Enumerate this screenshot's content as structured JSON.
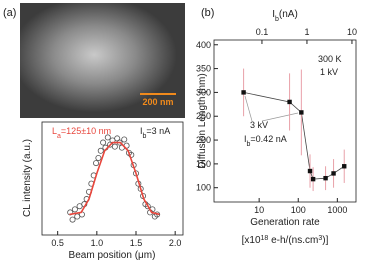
{
  "panel_labels": [
    "(a)",
    "(b)"
  ],
  "scale_bar": "200 nm",
  "chart_data": [
    {
      "type": "scatter",
      "xlabel": "Beam position (μm)",
      "ylabel": "CL intensity (a.u.)",
      "xlim": [
        0.3,
        2.1
      ],
      "ylim": [
        0,
        1.1
      ],
      "xticks": [
        0.5,
        {
          "value": 1,
          "label": "1.0"
        },
        1.5,
        {
          "value": 2,
          "label": "2.0"
        }
      ],
      "annotations": [
        [
          "L",
          "a",
          "=125±10 nm"
        ],
        [
          "I",
          "b",
          "=3 nA"
        ]
      ],
      "series": [
        {
          "marker": "circle",
          "color": "#555555",
          "x": [
            0.66,
            0.69,
            0.72,
            0.75,
            0.78,
            0.81,
            0.84,
            0.87,
            0.9,
            0.93,
            0.96,
            0.99,
            1.02,
            1.05,
            1.08,
            1.11,
            1.14,
            1.17,
            1.2,
            1.23,
            1.26,
            1.29,
            1.32,
            1.35,
            1.38,
            1.41,
            1.44,
            1.47,
            1.5,
            1.53,
            1.56,
            1.59,
            1.62,
            1.65,
            1.68,
            1.71,
            1.74,
            1.77
          ],
          "values": [
            0.22,
            0.15,
            0.25,
            0.18,
            0.28,
            0.2,
            0.3,
            0.35,
            0.42,
            0.5,
            0.58,
            0.7,
            0.75,
            0.82,
            0.9,
            0.85,
            0.95,
            0.88,
            0.92,
            0.86,
            0.94,
            0.9,
            0.85,
            0.93,
            0.87,
            0.8,
            0.78,
            0.68,
            0.6,
            0.5,
            0.45,
            0.38,
            0.3,
            0.28,
            0.22,
            0.25,
            0.18,
            0.2
          ]
        },
        {
          "marker": "line",
          "color": "#e8463c",
          "x": [
            0.65,
            0.8,
            0.9,
            1.0,
            1.1,
            1.2,
            1.3,
            1.4,
            1.5,
            1.6,
            1.7,
            1.8
          ],
          "values": [
            0.2,
            0.22,
            0.35,
            0.6,
            0.82,
            0.9,
            0.9,
            0.82,
            0.6,
            0.35,
            0.22,
            0.2
          ]
        }
      ]
    },
    {
      "type": "scatter",
      "xscale": "log",
      "xlabel": "Generation rate",
      "xlabel2": [
        "[x10",
        "18",
        " e-h/(ns.cm",
        "3",
        ")]"
      ],
      "ylabel": "Diffusion Length (nm)",
      "x2label": [
        "I",
        "b",
        "(nA)"
      ],
      "xlim": [
        0.7,
        3000
      ],
      "xticks": [
        10,
        100,
        1000
      ],
      "x2lim": [
        0.0086,
        12.3
      ],
      "x2ticks": [
        0.1,
        1,
        10
      ],
      "ylim": [
        70,
        410
      ],
      "yticks": [
        100,
        150,
        200,
        250,
        300,
        350,
        400
      ],
      "annotations": [
        "300 K",
        "1 kV",
        "3 kV",
        [
          "I",
          "b",
          "=0.42 nA"
        ]
      ],
      "series": [
        {
          "marker": "square",
          "color": "#111111",
          "error_color": "#e8a0a8",
          "line": true,
          "x": [
            4,
            60,
            120,
            200,
            240,
            500,
            800,
            1500
          ],
          "values": [
            300,
            280,
            258,
            135,
            118,
            120,
            130,
            145
          ],
          "errors": [
            50,
            60,
            90,
            35,
            25,
            25,
            30,
            35
          ]
        }
      ]
    }
  ]
}
